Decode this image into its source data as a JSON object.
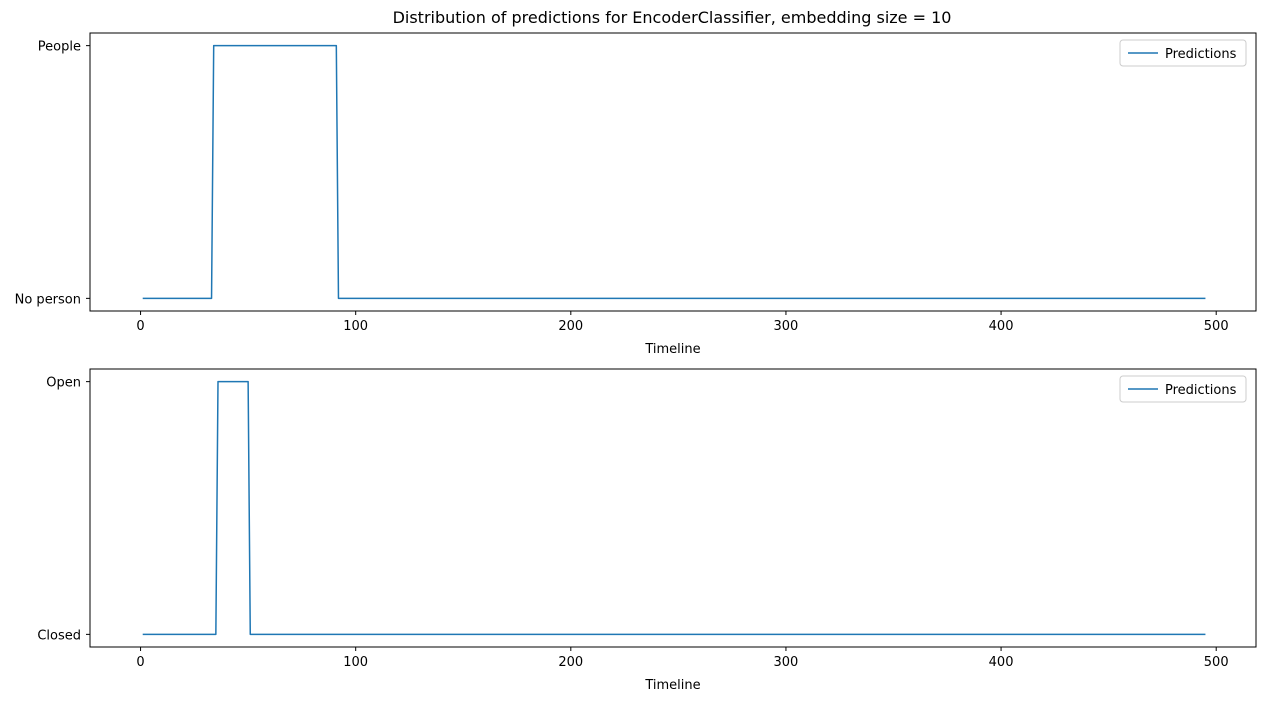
{
  "title": "Distribution of predictions for EncoderClassifier, embedding size = 10",
  "colors": {
    "series": "#1f77b4",
    "axes": "#000000",
    "legend_border": "#cccccc",
    "background": "#ffffff"
  },
  "chart_data": [
    {
      "type": "line",
      "title": "Distribution of predictions for EncoderClassifier, embedding size = 10",
      "xlabel": "Timeline",
      "ylabel": "",
      "xlim": [
        -23.5,
        518.5
      ],
      "ylim": [
        -0.05,
        1.05
      ],
      "xticks": [
        0,
        100,
        200,
        300,
        400,
        500
      ],
      "xtick_labels": [
        "0",
        "100",
        "200",
        "300",
        "400",
        "500"
      ],
      "yticks": [
        0,
        1
      ],
      "ytick_labels": [
        "No person",
        "People"
      ],
      "legend": {
        "position": "upper right",
        "entries": [
          "Predictions"
        ]
      },
      "grid": false,
      "series": [
        {
          "name": "Predictions",
          "x": [
            1,
            33,
            34,
            91,
            92,
            495
          ],
          "y": [
            0,
            0,
            1,
            1,
            0,
            0
          ]
        }
      ]
    },
    {
      "type": "line",
      "title": "",
      "xlabel": "Timeline",
      "ylabel": "",
      "xlim": [
        -23.5,
        518.5
      ],
      "ylim": [
        -0.05,
        1.05
      ],
      "xticks": [
        0,
        100,
        200,
        300,
        400,
        500
      ],
      "xtick_labels": [
        "0",
        "100",
        "200",
        "300",
        "400",
        "500"
      ],
      "yticks": [
        0,
        1
      ],
      "ytick_labels": [
        "Closed",
        "Open"
      ],
      "legend": {
        "position": "upper right",
        "entries": [
          "Predictions"
        ]
      },
      "grid": false,
      "series": [
        {
          "name": "Predictions",
          "x": [
            1,
            35,
            36,
            50,
            51,
            495
          ],
          "y": [
            0,
            0,
            1,
            1,
            0,
            0
          ]
        }
      ]
    }
  ]
}
